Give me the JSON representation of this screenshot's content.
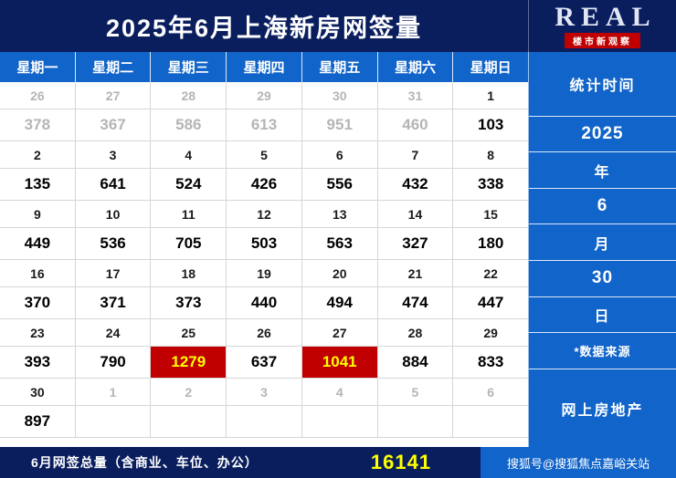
{
  "title": "2025年6月上海新房网签量",
  "logo": {
    "text": "REAL",
    "subtext": "楼市新观察"
  },
  "colors": {
    "navy": "#0a1e5e",
    "blue": "#1164c9",
    "highlight_red": "#c00000",
    "highlight_text": "#ffff00",
    "total_yellow": "#ffff00",
    "muted_gray": "#b5b5b5"
  },
  "table": {
    "headers": [
      "星期一",
      "星期二",
      "星期三",
      "星期四",
      "星期五",
      "星期六",
      "星期日"
    ],
    "rows": [
      {
        "kind": "date",
        "cells": [
          {
            "t": "26",
            "muted": true
          },
          {
            "t": "27",
            "muted": true
          },
          {
            "t": "28",
            "muted": true
          },
          {
            "t": "29",
            "muted": true
          },
          {
            "t": "30",
            "muted": true
          },
          {
            "t": "31",
            "muted": true
          },
          {
            "t": "1"
          }
        ]
      },
      {
        "kind": "value",
        "cells": [
          {
            "t": "378",
            "muted": true
          },
          {
            "t": "367",
            "muted": true
          },
          {
            "t": "586",
            "muted": true
          },
          {
            "t": "613",
            "muted": true
          },
          {
            "t": "951",
            "muted": true
          },
          {
            "t": "460",
            "muted": true
          },
          {
            "t": "103"
          }
        ]
      },
      {
        "kind": "date",
        "cells": [
          {
            "t": "2"
          },
          {
            "t": "3"
          },
          {
            "t": "4"
          },
          {
            "t": "5"
          },
          {
            "t": "6"
          },
          {
            "t": "7"
          },
          {
            "t": "8"
          }
        ]
      },
      {
        "kind": "value",
        "cells": [
          {
            "t": "135"
          },
          {
            "t": "641"
          },
          {
            "t": "524"
          },
          {
            "t": "426"
          },
          {
            "t": "556"
          },
          {
            "t": "432"
          },
          {
            "t": "338"
          }
        ]
      },
      {
        "kind": "date",
        "cells": [
          {
            "t": "9"
          },
          {
            "t": "10"
          },
          {
            "t": "11"
          },
          {
            "t": "12"
          },
          {
            "t": "13"
          },
          {
            "t": "14"
          },
          {
            "t": "15"
          }
        ]
      },
      {
        "kind": "value",
        "cells": [
          {
            "t": "449"
          },
          {
            "t": "536"
          },
          {
            "t": "705"
          },
          {
            "t": "503"
          },
          {
            "t": "563"
          },
          {
            "t": "327"
          },
          {
            "t": "180"
          }
        ]
      },
      {
        "kind": "date",
        "cells": [
          {
            "t": "16"
          },
          {
            "t": "17"
          },
          {
            "t": "18"
          },
          {
            "t": "19"
          },
          {
            "t": "20"
          },
          {
            "t": "21"
          },
          {
            "t": "22"
          }
        ]
      },
      {
        "kind": "value",
        "cells": [
          {
            "t": "370"
          },
          {
            "t": "371"
          },
          {
            "t": "373"
          },
          {
            "t": "440"
          },
          {
            "t": "494"
          },
          {
            "t": "474"
          },
          {
            "t": "447"
          }
        ]
      },
      {
        "kind": "date",
        "cells": [
          {
            "t": "23"
          },
          {
            "t": "24"
          },
          {
            "t": "25"
          },
          {
            "t": "26"
          },
          {
            "t": "27"
          },
          {
            "t": "28"
          },
          {
            "t": "29"
          }
        ]
      },
      {
        "kind": "value",
        "cells": [
          {
            "t": "393"
          },
          {
            "t": "790"
          },
          {
            "t": "1279",
            "hl": true
          },
          {
            "t": "637"
          },
          {
            "t": "1041",
            "hl": true
          },
          {
            "t": "884"
          },
          {
            "t": "833"
          }
        ]
      },
      {
        "kind": "date",
        "cells": [
          {
            "t": "30"
          },
          {
            "t": "1",
            "muted": true
          },
          {
            "t": "2",
            "muted": true
          },
          {
            "t": "3",
            "muted": true
          },
          {
            "t": "4",
            "muted": true
          },
          {
            "t": "5",
            "muted": true
          },
          {
            "t": "6",
            "muted": true
          }
        ]
      },
      {
        "kind": "value",
        "cells": [
          {
            "t": "897"
          },
          {
            "t": ""
          },
          {
            "t": ""
          },
          {
            "t": ""
          },
          {
            "t": ""
          },
          {
            "t": ""
          },
          {
            "t": ""
          }
        ]
      }
    ]
  },
  "sidebar": {
    "items": [
      "统计时间",
      "2025",
      "年",
      "6",
      "月",
      "30",
      "日",
      "*数据来源",
      "网上房地产"
    ]
  },
  "footer": {
    "label": "6月网签总量（含商业、车位、办公）",
    "total": "16141",
    "credit": "搜狐号@搜狐焦点嘉峪关站"
  },
  "chart_data": {
    "type": "table",
    "title": "2025年6月上海新房网签量",
    "columns": [
      "星期一",
      "星期二",
      "星期三",
      "星期四",
      "星期五",
      "星期六",
      "星期日"
    ],
    "weeks": [
      {
        "dates": [
          26,
          27,
          28,
          29,
          30,
          31,
          1
        ],
        "values": [
          378,
          367,
          586,
          613,
          951,
          460,
          103
        ],
        "other_month_dates": [
          26,
          27,
          28,
          29,
          30,
          31
        ]
      },
      {
        "dates": [
          2,
          3,
          4,
          5,
          6,
          7,
          8
        ],
        "values": [
          135,
          641,
          524,
          426,
          556,
          432,
          338
        ],
        "other_month_dates": []
      },
      {
        "dates": [
          9,
          10,
          11,
          12,
          13,
          14,
          15
        ],
        "values": [
          449,
          536,
          705,
          503,
          563,
          327,
          180
        ],
        "other_month_dates": []
      },
      {
        "dates": [
          16,
          17,
          18,
          19,
          20,
          21,
          22
        ],
        "values": [
          370,
          371,
          373,
          440,
          494,
          474,
          447
        ],
        "other_month_dates": []
      },
      {
        "dates": [
          23,
          24,
          25,
          26,
          27,
          28,
          29
        ],
        "values": [
          393,
          790,
          1279,
          637,
          1041,
          884,
          833
        ],
        "other_month_dates": []
      },
      {
        "dates": [
          30,
          1,
          2,
          3,
          4,
          5,
          6
        ],
        "values": [
          897,
          null,
          null,
          null,
          null,
          null,
          null
        ],
        "other_month_dates": [
          1,
          2,
          3,
          4,
          5,
          6
        ]
      }
    ],
    "highlighted_values": [
      1279,
      1041
    ],
    "stat_period": {
      "year": 2025,
      "month": 6,
      "day": 30
    },
    "data_source": "网上房地产",
    "monthly_total": 16141
  }
}
